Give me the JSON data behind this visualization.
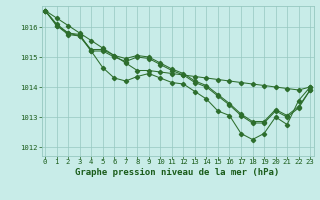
{
  "title": "Graphe pression niveau de la mer (hPa)",
  "hours": [
    0,
    1,
    2,
    3,
    4,
    5,
    6,
    7,
    8,
    9,
    10,
    11,
    12,
    13,
    14,
    15,
    16,
    17,
    18,
    19,
    20,
    21,
    22,
    23
  ],
  "ylim": [
    1011.7,
    1016.7
  ],
  "yticks": [
    1012,
    1013,
    1014,
    1015,
    1016
  ],
  "line_straight": [
    1016.55,
    1016.3,
    1016.05,
    1015.8,
    1015.55,
    1015.3,
    1015.05,
    1014.8,
    1014.55,
    1014.55,
    1014.5,
    1014.45,
    1014.4,
    1014.35,
    1014.3,
    1014.25,
    1014.2,
    1014.15,
    1014.1,
    1014.05,
    1014.0,
    1013.95,
    1013.9,
    1014.0
  ],
  "line_a": [
    1016.55,
    1016.1,
    1015.8,
    1015.75,
    1015.2,
    1014.65,
    1014.3,
    1014.2,
    1014.35,
    1014.45,
    1014.3,
    1014.15,
    1014.1,
    1013.85,
    1013.6,
    1013.2,
    1013.05,
    1012.45,
    1012.25,
    1012.45,
    1013.0,
    1012.75,
    1013.55,
    1014.0
  ],
  "line_b": [
    1016.55,
    1016.05,
    1015.8,
    1015.7,
    1015.25,
    1015.25,
    1015.05,
    1014.95,
    1015.05,
    1015.0,
    1014.8,
    1014.6,
    1014.45,
    1014.2,
    1014.05,
    1013.75,
    1013.45,
    1013.1,
    1012.85,
    1012.85,
    1013.25,
    1013.05,
    1013.35,
    1013.9
  ],
  "line_c": [
    1016.55,
    1016.05,
    1015.75,
    1015.7,
    1015.2,
    1015.2,
    1015.0,
    1014.85,
    1015.0,
    1014.95,
    1014.75,
    1014.55,
    1014.4,
    1014.15,
    1014.0,
    1013.7,
    1013.4,
    1013.05,
    1012.8,
    1012.8,
    1013.2,
    1013.0,
    1013.3,
    1013.9
  ],
  "line_color": "#2d6e2d",
  "bg_color": "#c8ece8",
  "grid_color": "#96c8c0",
  "text_color": "#1a5c1a",
  "title_fontsize": 6.5,
  "tick_fontsize": 5.2
}
